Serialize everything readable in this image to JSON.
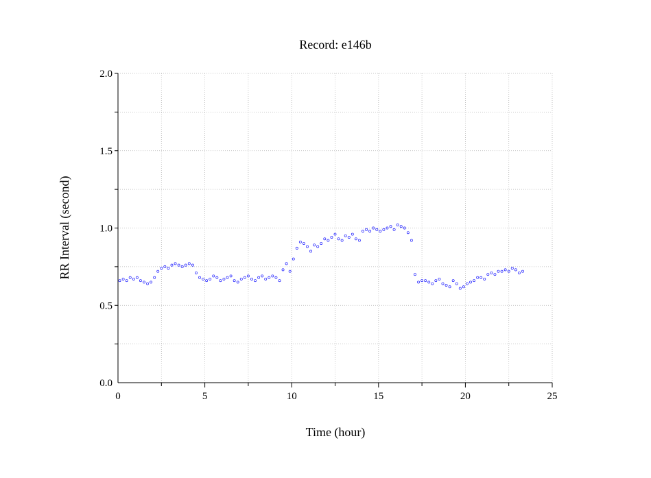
{
  "chart_data": {
    "type": "scatter",
    "title": "Record:  e146b",
    "xlabel": "Time (hour)",
    "ylabel": "RR Interval (second)",
    "xlim": [
      0,
      25
    ],
    "ylim": [
      0,
      2
    ],
    "xticks": [
      0,
      5,
      10,
      15,
      20,
      25
    ],
    "xtick_labels": [
      "0",
      "5",
      "10",
      "15",
      "20",
      "25"
    ],
    "yticks": [
      0,
      0.5,
      1,
      1.5,
      2
    ],
    "ytick_labels": [
      "0.0",
      "0.5",
      "1.0",
      "1.5",
      "2.0"
    ],
    "grid": true,
    "marker_color": "#1a1aff",
    "series": [
      {
        "x": [
          0.1,
          0.3,
          0.5,
          0.7,
          0.9,
          1.1,
          1.3,
          1.5,
          1.7,
          1.9,
          2.1,
          2.3,
          2.5,
          2.7,
          2.9,
          3.1,
          3.3,
          3.5,
          3.7,
          3.9,
          4.1,
          4.3,
          4.5,
          4.7,
          4.9,
          5.1,
          5.3,
          5.5,
          5.7,
          5.9,
          6.1,
          6.3,
          6.5,
          6.7,
          6.9,
          7.1,
          7.3,
          7.5,
          7.7,
          7.9,
          8.1,
          8.3,
          8.5,
          8.7,
          8.9,
          9.1,
          9.3,
          9.5,
          9.7,
          9.9,
          10.1,
          10.3,
          10.5,
          10.7,
          10.9,
          11.1,
          11.3,
          11.5,
          11.7,
          11.9,
          12.1,
          12.3,
          12.5,
          12.7,
          12.9,
          13.1,
          13.3,
          13.5,
          13.7,
          13.9,
          14.1,
          14.3,
          14.5,
          14.7,
          14.9,
          15.1,
          15.3,
          15.5,
          15.7,
          15.9,
          16.1,
          16.3,
          16.5,
          16.7,
          16.9,
          17.1,
          17.3,
          17.5,
          17.7,
          17.9,
          18.1,
          18.3,
          18.5,
          18.7,
          18.9,
          19.1,
          19.3,
          19.5,
          19.7,
          19.9,
          20.1,
          20.3,
          20.5,
          20.7,
          20.9,
          21.1,
          21.3,
          21.5,
          21.7,
          21.9,
          22.1,
          22.3,
          22.5,
          22.7,
          22.9,
          23.1,
          23.3
        ],
        "y": [
          0.66,
          0.67,
          0.66,
          0.68,
          0.67,
          0.68,
          0.66,
          0.65,
          0.64,
          0.65,
          0.68,
          0.72,
          0.74,
          0.75,
          0.74,
          0.76,
          0.77,
          0.76,
          0.75,
          0.76,
          0.77,
          0.76,
          0.71,
          0.68,
          0.67,
          0.66,
          0.67,
          0.69,
          0.68,
          0.66,
          0.67,
          0.68,
          0.69,
          0.66,
          0.65,
          0.67,
          0.68,
          0.69,
          0.67,
          0.66,
          0.68,
          0.69,
          0.67,
          0.68,
          0.69,
          0.68,
          0.66,
          0.73,
          0.77,
          0.72,
          0.8,
          0.87,
          0.91,
          0.9,
          0.88,
          0.85,
          0.89,
          0.88,
          0.9,
          0.93,
          0.92,
          0.94,
          0.96,
          0.93,
          0.92,
          0.95,
          0.94,
          0.96,
          0.93,
          0.92,
          0.98,
          0.99,
          0.98,
          1.0,
          0.99,
          0.98,
          0.99,
          1.0,
          1.01,
          0.99,
          1.02,
          1.01,
          1.0,
          0.97,
          0.92,
          0.7,
          0.65,
          0.66,
          0.66,
          0.65,
          0.64,
          0.66,
          0.67,
          0.64,
          0.63,
          0.62,
          0.66,
          0.64,
          0.61,
          0.62,
          0.64,
          0.65,
          0.66,
          0.68,
          0.68,
          0.67,
          0.7,
          0.71,
          0.7,
          0.72,
          0.72,
          0.73,
          0.72,
          0.74,
          0.73,
          0.71,
          0.72
        ]
      }
    ]
  }
}
